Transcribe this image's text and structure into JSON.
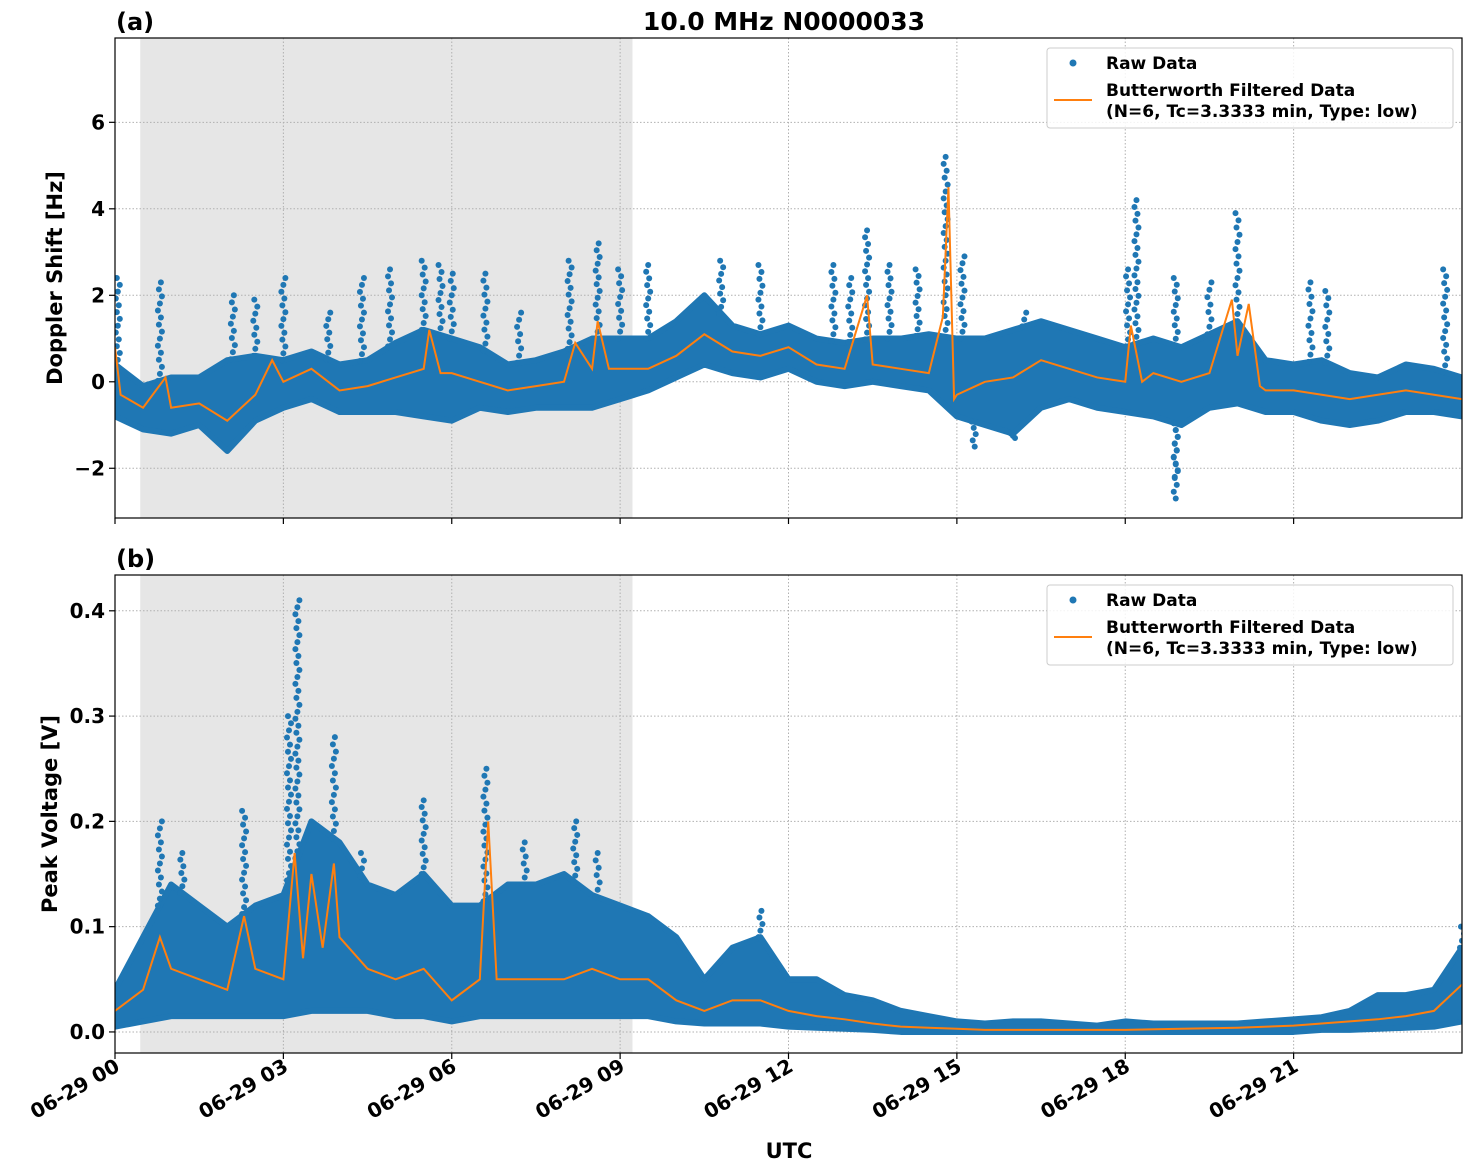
{
  "title": "10.0 MHz N0000033",
  "xlabel": "UTC",
  "x_tick_labels": [
    "06-29 00",
    "06-29 03",
    "06-29 06",
    "06-29 09",
    "06-29 12",
    "06-29 15",
    "06-29 18",
    "06-29 21"
  ],
  "colors": {
    "raw": "#1f77b4",
    "filtered": "#ff7f0e",
    "shade": "#e6e6e6",
    "grid": "#b0b0b0"
  },
  "chart_data": [
    {
      "type": "scatter",
      "panel_label": "(a)",
      "ylabel": "Doppler Shift [Hz]",
      "xlim_hours_utc": [
        0,
        24
      ],
      "ylim": [
        -3.15,
        7.95
      ],
      "y_ticks": [
        -2,
        0,
        2,
        4,
        6
      ],
      "y_tick_labels": [
        "−2",
        "0",
        "2",
        "4",
        "6"
      ],
      "grid": true,
      "shaded_interval_hours": [
        0.45,
        9.22
      ],
      "legend": {
        "placement": "top-right",
        "raw": "Raw Data",
        "filtered_line1": "Butterworth Filtered Data",
        "filtered_line2": "(N=6, Tc=3.3333 min, Type: low)"
      },
      "raw_envelope": {
        "t": [
          0,
          0.5,
          1,
          1.5,
          2,
          2.5,
          3,
          3.5,
          4,
          4.5,
          5,
          5.5,
          6,
          6.5,
          7,
          7.5,
          8,
          8.5,
          9,
          9.5,
          10,
          10.5,
          11,
          11.5,
          12,
          12.5,
          13,
          13.5,
          14,
          14.5,
          15,
          15.5,
          16,
          16.5,
          17,
          17.5,
          18,
          18.5,
          19,
          19.5,
          20,
          20.5,
          21,
          21.5,
          22,
          22.5,
          23,
          23.5,
          24
        ],
        "high": [
          0.4,
          -0.1,
          0.1,
          0.1,
          0.5,
          0.6,
          0.5,
          0.7,
          0.4,
          0.5,
          0.9,
          1.2,
          1.0,
          0.8,
          0.4,
          0.5,
          0.7,
          1.0,
          1.0,
          1.0,
          1.4,
          2.0,
          1.3,
          1.1,
          1.3,
          1.0,
          0.9,
          1.0,
          1.0,
          1.1,
          1.0,
          1.0,
          1.2,
          1.4,
          1.2,
          1.0,
          0.8,
          1.0,
          0.8,
          1.1,
          1.4,
          0.5,
          0.4,
          0.5,
          0.2,
          0.1,
          0.4,
          0.3,
          0.1
        ],
        "low": [
          -0.8,
          -1.1,
          -1.2,
          -1.0,
          -1.6,
          -0.9,
          -0.6,
          -0.4,
          -0.7,
          -0.7,
          -0.7,
          -0.8,
          -0.9,
          -0.6,
          -0.7,
          -0.6,
          -0.6,
          -0.6,
          -0.4,
          -0.2,
          0.1,
          0.4,
          0.2,
          0.1,
          0.3,
          0.0,
          -0.1,
          0.0,
          -0.1,
          -0.2,
          -0.8,
          -1.0,
          -1.2,
          -0.6,
          -0.4,
          -0.6,
          -0.7,
          -0.8,
          -1.0,
          -0.6,
          -0.5,
          -0.7,
          -0.7,
          -0.9,
          -1.0,
          -0.9,
          -0.7,
          -0.7,
          -0.8
        ]
      },
      "raw_spikes": [
        [
          0.05,
          2.4
        ],
        [
          0.8,
          2.3
        ],
        [
          2.1,
          2.0
        ],
        [
          2.5,
          1.9
        ],
        [
          3.0,
          2.4
        ],
        [
          3.8,
          1.6
        ],
        [
          4.4,
          2.4
        ],
        [
          4.9,
          2.6
        ],
        [
          5.5,
          2.8
        ],
        [
          5.8,
          2.7
        ],
        [
          6.0,
          2.5
        ],
        [
          6.6,
          2.5
        ],
        [
          7.2,
          1.6
        ],
        [
          8.1,
          2.8
        ],
        [
          8.6,
          3.2
        ],
        [
          9.0,
          2.6
        ],
        [
          9.5,
          2.7
        ],
        [
          10.8,
          2.8
        ],
        [
          11.5,
          2.7
        ],
        [
          12.8,
          2.7
        ],
        [
          13.1,
          2.4
        ],
        [
          13.4,
          3.5
        ],
        [
          13.8,
          2.7
        ],
        [
          14.3,
          2.6
        ],
        [
          14.8,
          5.2
        ],
        [
          15.1,
          2.9
        ],
        [
          16.2,
          1.6
        ],
        [
          18.05,
          2.6
        ],
        [
          18.2,
          4.2
        ],
        [
          18.9,
          2.4
        ],
        [
          19.5,
          2.3
        ],
        [
          20.0,
          3.9
        ],
        [
          21.3,
          2.3
        ],
        [
          21.6,
          2.1
        ],
        [
          23.7,
          2.6
        ],
        [
          15.3,
          -1.5
        ],
        [
          16.0,
          -1.3
        ],
        [
          18.9,
          -2.7
        ],
        [
          18.9,
          -2.2
        ]
      ],
      "filtered": [
        [
          0,
          0.8
        ],
        [
          0.1,
          -0.3
        ],
        [
          0.5,
          -0.6
        ],
        [
          0.9,
          0.1
        ],
        [
          1.0,
          -0.6
        ],
        [
          1.5,
          -0.5
        ],
        [
          2.0,
          -0.9
        ],
        [
          2.5,
          -0.3
        ],
        [
          2.8,
          0.5
        ],
        [
          3.0,
          0.0
        ],
        [
          3.5,
          0.3
        ],
        [
          4.0,
          -0.2
        ],
        [
          4.5,
          -0.1
        ],
        [
          5.0,
          0.1
        ],
        [
          5.5,
          0.3
        ],
        [
          5.6,
          1.2
        ],
        [
          5.8,
          0.2
        ],
        [
          6.0,
          0.2
        ],
        [
          6.5,
          0.0
        ],
        [
          7.0,
          -0.2
        ],
        [
          7.5,
          -0.1
        ],
        [
          8.0,
          0.0
        ],
        [
          8.2,
          0.9
        ],
        [
          8.5,
          0.3
        ],
        [
          8.6,
          1.4
        ],
        [
          8.8,
          0.3
        ],
        [
          9.0,
          0.3
        ],
        [
          9.5,
          0.3
        ],
        [
          10.0,
          0.6
        ],
        [
          10.5,
          1.1
        ],
        [
          11.0,
          0.7
        ],
        [
          11.5,
          0.6
        ],
        [
          12.0,
          0.8
        ],
        [
          12.5,
          0.4
        ],
        [
          13.0,
          0.3
        ],
        [
          13.4,
          2.0
        ],
        [
          13.5,
          0.4
        ],
        [
          14.0,
          0.3
        ],
        [
          14.5,
          0.2
        ],
        [
          14.75,
          1.5
        ],
        [
          14.85,
          4.5
        ],
        [
          14.95,
          -0.4
        ],
        [
          15.0,
          -0.3
        ],
        [
          15.5,
          0.0
        ],
        [
          16.0,
          0.1
        ],
        [
          16.5,
          0.5
        ],
        [
          17.0,
          0.3
        ],
        [
          17.5,
          0.1
        ],
        [
          18.0,
          0.0
        ],
        [
          18.1,
          1.3
        ],
        [
          18.3,
          0.0
        ],
        [
          18.5,
          0.2
        ],
        [
          19.0,
          0.0
        ],
        [
          19.5,
          0.2
        ],
        [
          19.9,
          1.9
        ],
        [
          20.0,
          0.6
        ],
        [
          20.2,
          1.8
        ],
        [
          20.4,
          -0.1
        ],
        [
          20.5,
          -0.2
        ],
        [
          21.0,
          -0.2
        ],
        [
          21.5,
          -0.3
        ],
        [
          22.0,
          -0.4
        ],
        [
          22.5,
          -0.3
        ],
        [
          23.0,
          -0.2
        ],
        [
          23.5,
          -0.3
        ],
        [
          24.0,
          -0.4
        ]
      ]
    },
    {
      "type": "scatter",
      "panel_label": "(b)",
      "ylabel": "Peak Voltage [V]",
      "xlim_hours_utc": [
        0,
        24
      ],
      "ylim": [
        -0.02,
        0.434
      ],
      "y_ticks": [
        0.0,
        0.1,
        0.2,
        0.3,
        0.4
      ],
      "y_tick_labels": [
        "0.0",
        "0.1",
        "0.2",
        "0.3",
        "0.4"
      ],
      "grid": true,
      "shaded_interval_hours": [
        0.45,
        9.22
      ],
      "legend": {
        "placement": "top-right",
        "raw": "Raw Data",
        "filtered_line1": "Butterworth Filtered Data",
        "filtered_line2": "(N=6, Tc=3.3333 min, Type: low)"
      },
      "raw_envelope": {
        "t": [
          0,
          0.5,
          1,
          1.5,
          2,
          2.5,
          3,
          3.5,
          4,
          4.5,
          5,
          5.5,
          6,
          6.5,
          7,
          7.5,
          8,
          8.5,
          9,
          9.5,
          10,
          10.5,
          11,
          11.5,
          12,
          12.5,
          13,
          13.5,
          14,
          14.5,
          15,
          15.5,
          16,
          16.5,
          17,
          17.5,
          18,
          18.5,
          19,
          19.5,
          20,
          20.5,
          21,
          21.5,
          22,
          22.5,
          23,
          23.5,
          24
        ],
        "high": [
          0.04,
          0.09,
          0.14,
          0.12,
          0.1,
          0.12,
          0.13,
          0.2,
          0.18,
          0.14,
          0.13,
          0.15,
          0.12,
          0.12,
          0.14,
          0.14,
          0.15,
          0.13,
          0.12,
          0.11,
          0.09,
          0.05,
          0.08,
          0.09,
          0.05,
          0.05,
          0.035,
          0.03,
          0.02,
          0.015,
          0.01,
          0.008,
          0.01,
          0.01,
          0.008,
          0.006,
          0.01,
          0.008,
          0.008,
          0.008,
          0.008,
          0.01,
          0.012,
          0.014,
          0.02,
          0.035,
          0.035,
          0.04,
          0.08
        ],
        "low": [
          0.005,
          0.01,
          0.015,
          0.015,
          0.015,
          0.015,
          0.015,
          0.02,
          0.02,
          0.02,
          0.015,
          0.015,
          0.01,
          0.015,
          0.015,
          0.015,
          0.015,
          0.015,
          0.015,
          0.015,
          0.01,
          0.008,
          0.008,
          0.008,
          0.005,
          0.004,
          0.003,
          0.002,
          0,
          0,
          0,
          0,
          0,
          0,
          0,
          0,
          0,
          0,
          0,
          0,
          0,
          0,
          0,
          0.002,
          0.002,
          0.003,
          0.004,
          0.005,
          0.01
        ]
      },
      "raw_spikes": [
        [
          0.8,
          0.2
        ],
        [
          1.2,
          0.17
        ],
        [
          2.3,
          0.21
        ],
        [
          3.1,
          0.3
        ],
        [
          3.25,
          0.41
        ],
        [
          3.9,
          0.28
        ],
        [
          4.4,
          0.17
        ],
        [
          5.5,
          0.22
        ],
        [
          6.6,
          0.25
        ],
        [
          7.3,
          0.18
        ],
        [
          8.2,
          0.2
        ],
        [
          8.6,
          0.17
        ],
        [
          11.5,
          0.115
        ],
        [
          24.0,
          0.1
        ]
      ],
      "filtered": [
        [
          0,
          0.02
        ],
        [
          0.5,
          0.04
        ],
        [
          0.8,
          0.09
        ],
        [
          1.0,
          0.06
        ],
        [
          1.5,
          0.05
        ],
        [
          2.0,
          0.04
        ],
        [
          2.3,
          0.11
        ],
        [
          2.5,
          0.06
        ],
        [
          3.0,
          0.05
        ],
        [
          3.2,
          0.17
        ],
        [
          3.35,
          0.07
        ],
        [
          3.5,
          0.15
        ],
        [
          3.7,
          0.08
        ],
        [
          3.9,
          0.16
        ],
        [
          4.0,
          0.09
        ],
        [
          4.5,
          0.06
        ],
        [
          5.0,
          0.05
        ],
        [
          5.5,
          0.06
        ],
        [
          6.0,
          0.03
        ],
        [
          6.5,
          0.05
        ],
        [
          6.65,
          0.2
        ],
        [
          6.8,
          0.05
        ],
        [
          7.0,
          0.05
        ],
        [
          7.5,
          0.05
        ],
        [
          8.0,
          0.05
        ],
        [
          8.5,
          0.06
        ],
        [
          9.0,
          0.05
        ],
        [
          9.5,
          0.05
        ],
        [
          10.0,
          0.03
        ],
        [
          10.5,
          0.02
        ],
        [
          11.0,
          0.03
        ],
        [
          11.5,
          0.03
        ],
        [
          12.0,
          0.02
        ],
        [
          12.5,
          0.015
        ],
        [
          13.0,
          0.012
        ],
        [
          13.5,
          0.008
        ],
        [
          14.0,
          0.005
        ],
        [
          14.5,
          0.004
        ],
        [
          15.0,
          0.003
        ],
        [
          15.5,
          0.002
        ],
        [
          16.0,
          0.002
        ],
        [
          17.0,
          0.002
        ],
        [
          18.0,
          0.002
        ],
        [
          19.0,
          0.003
        ],
        [
          20.0,
          0.004
        ],
        [
          21.0,
          0.006
        ],
        [
          21.5,
          0.008
        ],
        [
          22.0,
          0.01
        ],
        [
          22.5,
          0.012
        ],
        [
          23.0,
          0.015
        ],
        [
          23.5,
          0.02
        ],
        [
          24.0,
          0.045
        ]
      ]
    }
  ]
}
